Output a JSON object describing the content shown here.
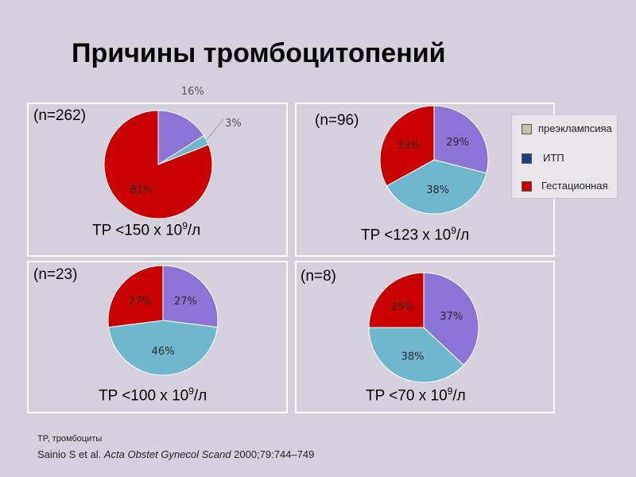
{
  "title": "Причины тромбоцитопений",
  "colors": {
    "preeclampsia": "#8a74d6",
    "itp": "#6fb6cf",
    "gestational": "#c80000"
  },
  "legend": {
    "items": [
      {
        "label": "преэклампсияа",
        "color": "#c5c2aa"
      },
      {
        "label": "ИТП",
        "color": "#1f3f7a"
      },
      {
        "label": "Гестационная",
        "color": "#c80000"
      }
    ]
  },
  "panels": [
    {
      "n": "(n=262)",
      "tp_prefix": "TP <150 x 10",
      "tp_exp": "9",
      "tp_suffix": "/л"
    },
    {
      "n": "(n=96)",
      "tp_prefix": "TP <123 x 10",
      "tp_exp": "9",
      "tp_suffix": "/л"
    },
    {
      "n": "(n=23)",
      "tp_prefix": "TP <100 x 10",
      "tp_exp": "9",
      "tp_suffix": "/л"
    },
    {
      "n": "(n=8)",
      "tp_prefix": "TP <70 x 10",
      "tp_exp": "9",
      "tp_suffix": "/л"
    }
  ],
  "chart_data": [
    {
      "type": "pie",
      "categories": [
        "преэклампсияа",
        "ИТП",
        "Гестационная"
      ],
      "values": [
        16,
        3,
        81
      ],
      "labels": [
        "16%",
        "3%",
        "81%"
      ]
    },
    {
      "type": "pie",
      "categories": [
        "преэклампсияа",
        "ИТП",
        "Гестационная"
      ],
      "values": [
        29,
        38,
        33
      ],
      "labels": [
        "29%",
        "38%",
        "33%"
      ]
    },
    {
      "type": "pie",
      "categories": [
        "преэклампсияа",
        "ИТП",
        "Гестационная"
      ],
      "values": [
        27,
        46,
        27
      ],
      "labels": [
        "27%",
        "46%",
        "27%"
      ]
    },
    {
      "type": "pie",
      "categories": [
        "преэклампсияа",
        "ИТП",
        "Гестационная"
      ],
      "values": [
        37,
        38,
        25
      ],
      "labels": [
        "37%",
        "38%",
        "25%"
      ]
    }
  ],
  "footnote": "TP, тромбоциты",
  "citation": {
    "authors": "Sainio S et al. ",
    "journal": "Acta Obstet Gynecol Scand",
    "details": " 2000;79:744–749"
  }
}
